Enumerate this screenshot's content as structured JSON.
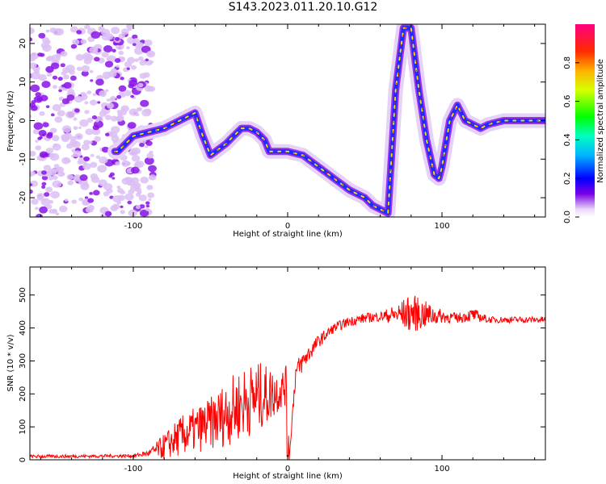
{
  "title": "S143.2023.011.20.10.G12",
  "chart_data": [
    {
      "type": "heatmap",
      "xlabel": "Height of straight line (km)",
      "ylabel": "Frequency (Hz)",
      "xlim": [
        -167,
        167
      ],
      "ylim": [
        -25,
        25
      ],
      "xticks": [
        -100,
        0,
        100
      ],
      "yticks": [
        -20,
        -10,
        0,
        10,
        20
      ],
      "colorbar": {
        "label": "Normalized spectral amplitude",
        "ticks": [
          0.0,
          0.2,
          0.4,
          0.6,
          0.8
        ],
        "range": [
          0,
          1
        ]
      },
      "ridge": {
        "x": [
          -110,
          -100,
          -90,
          -80,
          -70,
          -60,
          -55,
          -50,
          -40,
          -30,
          -25,
          -20,
          -15,
          -12,
          -10,
          0,
          10,
          20,
          30,
          40,
          50,
          55,
          60,
          65,
          70,
          75,
          80,
          85,
          90,
          95,
          98,
          100,
          105,
          110,
          115,
          120,
          125,
          130,
          140,
          150,
          160,
          167
        ],
        "y": [
          -8,
          -4,
          -3,
          -2,
          0,
          2,
          -4,
          -9,
          -6,
          -2,
          -2,
          -3,
          -5,
          -8,
          -8,
          -8,
          -9,
          -12,
          -15,
          -18,
          -20,
          -22,
          -23,
          -24,
          8,
          24,
          24,
          8,
          -5,
          -14,
          -15,
          -12,
          0,
          4,
          0,
          -1,
          -2,
          -1,
          0,
          0,
          0,
          0
        ]
      }
    },
    {
      "type": "line",
      "xlabel": "Height of straight line (km)",
      "ylabel": "SNR (10 * v/v)",
      "xlim": [
        -167,
        167
      ],
      "ylim": [
        0,
        585
      ],
      "xticks": [
        -100,
        0,
        100
      ],
      "yticks": [
        0,
        100,
        200,
        300,
        400,
        500
      ],
      "series_color": "#ff0000",
      "envelope": {
        "x": [
          -167,
          -100,
          -90,
          -80,
          -70,
          -60,
          -50,
          -40,
          -30,
          -20,
          -10,
          -5,
          0,
          1,
          5,
          10,
          20,
          30,
          40,
          50,
          60,
          70,
          80,
          90,
          100,
          110,
          120,
          130,
          140,
          150,
          160,
          167
        ],
        "base": [
          10,
          12,
          20,
          40,
          70,
          90,
          110,
          140,
          170,
          190,
          200,
          210,
          230,
          0,
          260,
          300,
          360,
          400,
          420,
          430,
          435,
          440,
          445,
          440,
          435,
          430,
          440,
          425,
          425,
          425,
          425,
          425
        ],
        "noise": [
          5,
          5,
          10,
          40,
          60,
          70,
          80,
          100,
          110,
          110,
          80,
          60,
          60,
          0,
          40,
          30,
          20,
          15,
          15,
          15,
          15,
          30,
          60,
          40,
          20,
          15,
          20,
          10,
          10,
          10,
          10,
          10
        ]
      }
    }
  ]
}
